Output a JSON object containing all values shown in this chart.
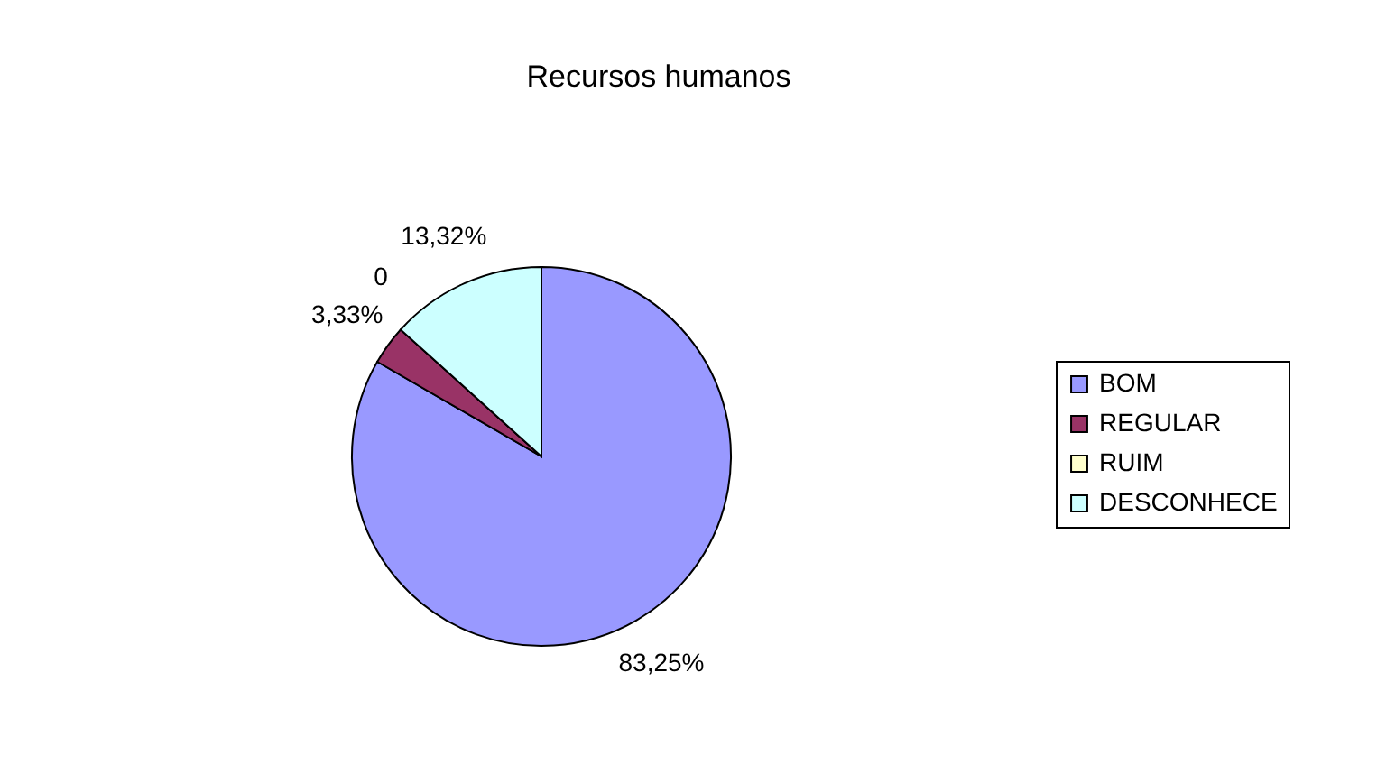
{
  "chart_data": {
    "type": "pie",
    "title": "Recursos humanos",
    "categories": [
      "BOM",
      "REGULAR",
      "RUIM",
      "DESCONHECE"
    ],
    "values": [
      83.25,
      3.33,
      0,
      13.32
    ],
    "value_labels": [
      "83,25%",
      "3,33%",
      "0",
      "13,32%"
    ],
    "colors": [
      "#9999ff",
      "#993366",
      "#ffffcc",
      "#ccffff"
    ],
    "legend": "right"
  }
}
